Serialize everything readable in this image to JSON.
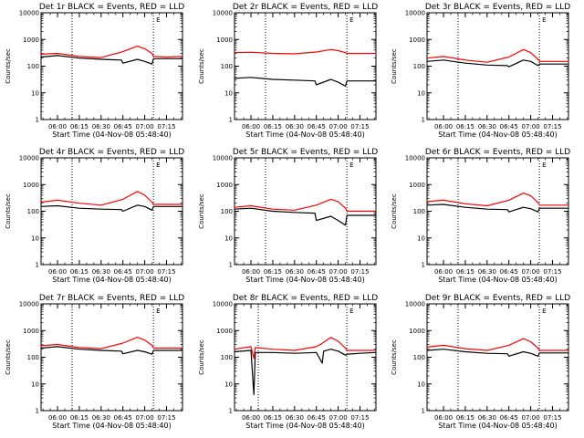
{
  "chart_data": {
    "type": "line",
    "layout": "3x3 panel grid",
    "y_scale": "log",
    "ylim": [
      1,
      10000
    ],
    "y_ticks": [
      "1",
      "10",
      "100",
      "1000",
      "10000"
    ],
    "ylabel": "Counts/sec",
    "xlabel": "Start Time (04-Nov-08 05:48:40)",
    "x_ticks": [
      "06:00",
      "06:15",
      "06:30",
      "06:45",
      "07:00",
      "07:15"
    ],
    "x_range": [
      "05:48:40",
      "07:26"
    ],
    "series_colors": {
      "events": "#000000",
      "lld": "#ff0000"
    },
    "panels": [
      {
        "title": "Det 1r BLACK = Events, RED = LLD",
        "vlines": [
          "06:10",
          "07:06"
        ],
        "marker": "E",
        "events_points": [
          [
            "05:48:40",
            220
          ],
          [
            "06:00",
            250
          ],
          [
            "06:15",
            200
          ],
          [
            "06:30",
            180
          ],
          [
            "06:44",
            170
          ],
          [
            "06:45",
            130
          ],
          [
            "06:55",
            180
          ],
          [
            "07:00",
            150
          ],
          [
            "07:05",
            120
          ],
          [
            "07:06",
            190
          ],
          [
            "07:15",
            190
          ],
          [
            "07:26",
            190
          ]
        ],
        "lld_points": [
          [
            "05:48:40",
            280
          ],
          [
            "06:00",
            300
          ],
          [
            "06:15",
            230
          ],
          [
            "06:30",
            210
          ],
          [
            "06:45",
            350
          ],
          [
            "06:55",
            560
          ],
          [
            "07:00",
            450
          ],
          [
            "07:05",
            300
          ],
          [
            "07:06",
            230
          ],
          [
            "07:15",
            220
          ],
          [
            "07:26",
            230
          ]
        ]
      },
      {
        "title": "Det 2r BLACK = Events, RED = LLD",
        "vlines": [
          "06:10",
          "07:06"
        ],
        "marker": "E",
        "events_points": [
          [
            "05:48:40",
            35
          ],
          [
            "06:00",
            38
          ],
          [
            "06:15",
            32
          ],
          [
            "06:30",
            30
          ],
          [
            "06:44",
            28
          ],
          [
            "06:45",
            20
          ],
          [
            "06:55",
            32
          ],
          [
            "07:00",
            25
          ],
          [
            "07:05",
            18
          ],
          [
            "07:06",
            28
          ],
          [
            "07:15",
            28
          ],
          [
            "07:26",
            28
          ]
        ],
        "lld_points": [
          [
            "05:48:40",
            320
          ],
          [
            "06:00",
            330
          ],
          [
            "06:15",
            300
          ],
          [
            "06:30",
            290
          ],
          [
            "06:45",
            340
          ],
          [
            "06:55",
            420
          ],
          [
            "07:00",
            380
          ],
          [
            "07:05",
            320
          ],
          [
            "07:06",
            300
          ],
          [
            "07:15",
            300
          ],
          [
            "07:26",
            300
          ]
        ]
      },
      {
        "title": "Det 3r BLACK = Events, RED = LLD",
        "vlines": [
          "06:10",
          "07:06"
        ],
        "marker": "E",
        "events_points": [
          [
            "05:48:40",
            150
          ],
          [
            "06:00",
            170
          ],
          [
            "06:15",
            130
          ],
          [
            "06:30",
            110
          ],
          [
            "06:44",
            105
          ],
          [
            "06:45",
            95
          ],
          [
            "06:55",
            170
          ],
          [
            "07:00",
            150
          ],
          [
            "07:05",
            105
          ],
          [
            "07:06",
            120
          ],
          [
            "07:15",
            120
          ],
          [
            "07:26",
            120
          ]
        ],
        "lld_points": [
          [
            "05:48:40",
            200
          ],
          [
            "06:00",
            230
          ],
          [
            "06:15",
            170
          ],
          [
            "06:30",
            140
          ],
          [
            "06:45",
            220
          ],
          [
            "06:55",
            420
          ],
          [
            "07:00",
            320
          ],
          [
            "07:05",
            180
          ],
          [
            "07:06",
            150
          ],
          [
            "07:15",
            150
          ],
          [
            "07:26",
            150
          ]
        ]
      },
      {
        "title": "Det 4r BLACK = Events, RED = LLD",
        "vlines": [
          "06:10",
          "07:06"
        ],
        "marker": "E",
        "events_points": [
          [
            "05:48:40",
            150
          ],
          [
            "06:00",
            160
          ],
          [
            "06:15",
            130
          ],
          [
            "06:30",
            120
          ],
          [
            "06:44",
            115
          ],
          [
            "06:45",
            100
          ],
          [
            "06:55",
            170
          ],
          [
            "07:00",
            150
          ],
          [
            "07:05",
            110
          ],
          [
            "07:06",
            150
          ],
          [
            "07:15",
            150
          ],
          [
            "07:26",
            150
          ]
        ],
        "lld_points": [
          [
            "05:48:40",
            220
          ],
          [
            "06:00",
            260
          ],
          [
            "06:15",
            200
          ],
          [
            "06:30",
            170
          ],
          [
            "06:45",
            280
          ],
          [
            "06:55",
            550
          ],
          [
            "07:00",
            400
          ],
          [
            "07:05",
            220
          ],
          [
            "07:06",
            180
          ],
          [
            "07:15",
            180
          ],
          [
            "07:26",
            180
          ]
        ]
      },
      {
        "title": "Det 5r BLACK = Events, RED = LLD",
        "vlines": [
          "06:10",
          "07:06"
        ],
        "marker": "E",
        "events_points": [
          [
            "05:48:40",
            120
          ],
          [
            "06:00",
            130
          ],
          [
            "06:15",
            100
          ],
          [
            "06:30",
            90
          ],
          [
            "06:44",
            85
          ],
          [
            "06:45",
            45
          ],
          [
            "06:55",
            65
          ],
          [
            "07:00",
            45
          ],
          [
            "07:05",
            30
          ],
          [
            "07:06",
            70
          ],
          [
            "07:15",
            70
          ],
          [
            "07:26",
            70
          ]
        ],
        "lld_points": [
          [
            "05:48:40",
            140
          ],
          [
            "06:00",
            160
          ],
          [
            "06:15",
            120
          ],
          [
            "06:30",
            110
          ],
          [
            "06:45",
            170
          ],
          [
            "06:55",
            280
          ],
          [
            "07:00",
            230
          ],
          [
            "07:05",
            130
          ],
          [
            "07:06",
            100
          ],
          [
            "07:15",
            100
          ],
          [
            "07:26",
            100
          ]
        ]
      },
      {
        "title": "Det 6r BLACK = Events, RED = LLD",
        "vlines": [
          "06:10",
          "07:06"
        ],
        "marker": "E",
        "events_points": [
          [
            "05:48:40",
            170
          ],
          [
            "06:00",
            180
          ],
          [
            "06:15",
            140
          ],
          [
            "06:30",
            120
          ],
          [
            "06:44",
            115
          ],
          [
            "06:45",
            95
          ],
          [
            "06:55",
            140
          ],
          [
            "07:00",
            125
          ],
          [
            "07:05",
            95
          ],
          [
            "07:06",
            130
          ],
          [
            "07:15",
            130
          ],
          [
            "07:26",
            130
          ]
        ],
        "lld_points": [
          [
            "05:48:40",
            230
          ],
          [
            "06:00",
            260
          ],
          [
            "06:15",
            190
          ],
          [
            "06:30",
            160
          ],
          [
            "06:45",
            260
          ],
          [
            "06:55",
            480
          ],
          [
            "07:00",
            380
          ],
          [
            "07:05",
            210
          ],
          [
            "07:06",
            170
          ],
          [
            "07:15",
            170
          ],
          [
            "07:26",
            170
          ]
        ]
      },
      {
        "title": "Det 7r BLACK = Events, RED = LLD",
        "vlines": [
          "06:10",
          "07:06"
        ],
        "marker": "E",
        "events_points": [
          [
            "05:48:40",
            220
          ],
          [
            "06:00",
            250
          ],
          [
            "06:15",
            200
          ],
          [
            "06:30",
            180
          ],
          [
            "06:44",
            170
          ],
          [
            "06:45",
            135
          ],
          [
            "06:55",
            180
          ],
          [
            "07:00",
            160
          ],
          [
            "07:05",
            130
          ],
          [
            "07:06",
            180
          ],
          [
            "07:15",
            180
          ],
          [
            "07:26",
            180
          ]
        ],
        "lld_points": [
          [
            "05:48:40",
            270
          ],
          [
            "06:00",
            300
          ],
          [
            "06:15",
            230
          ],
          [
            "06:30",
            210
          ],
          [
            "06:45",
            340
          ],
          [
            "06:55",
            560
          ],
          [
            "07:00",
            440
          ],
          [
            "07:05",
            280
          ],
          [
            "07:06",
            220
          ],
          [
            "07:15",
            220
          ],
          [
            "07:26",
            220
          ]
        ]
      },
      {
        "title": "Det 8r BLACK = Events, RED = LLD",
        "vlines": [
          "06:05",
          "07:06"
        ],
        "marker": "E",
        "events_points": [
          [
            "05:48:40",
            160
          ],
          [
            "06:00",
            180
          ],
          [
            "06:02",
            4
          ],
          [
            "06:03",
            150
          ],
          [
            "06:15",
            150
          ],
          [
            "06:30",
            140
          ],
          [
            "06:45",
            150
          ],
          [
            "06:49",
            60
          ],
          [
            "06:50",
            170
          ],
          [
            "06:55",
            200
          ],
          [
            "07:00",
            170
          ],
          [
            "07:05",
            120
          ],
          [
            "07:06",
            130
          ],
          [
            "07:15",
            140
          ],
          [
            "07:26",
            150
          ]
        ],
        "lld_points": [
          [
            "05:48:40",
            200
          ],
          [
            "06:00",
            250
          ],
          [
            "06:02",
            90
          ],
          [
            "06:03",
            230
          ],
          [
            "06:15",
            200
          ],
          [
            "06:30",
            180
          ],
          [
            "06:45",
            250
          ],
          [
            "06:49",
            330
          ],
          [
            "06:55",
            550
          ],
          [
            "07:00",
            400
          ],
          [
            "07:05",
            220
          ],
          [
            "07:06",
            180
          ],
          [
            "07:15",
            180
          ],
          [
            "07:26",
            180
          ]
        ]
      },
      {
        "title": "Det 9r BLACK = Events, RED = LLD",
        "vlines": [
          "06:10",
          "07:06"
        ],
        "marker": "E",
        "events_points": [
          [
            "05:48:40",
            180
          ],
          [
            "06:00",
            200
          ],
          [
            "06:15",
            160
          ],
          [
            "06:30",
            140
          ],
          [
            "06:44",
            135
          ],
          [
            "06:45",
            110
          ],
          [
            "06:55",
            160
          ],
          [
            "07:00",
            140
          ],
          [
            "07:05",
            110
          ],
          [
            "07:06",
            145
          ],
          [
            "07:15",
            145
          ],
          [
            "07:26",
            145
          ]
        ],
        "lld_points": [
          [
            "05:48:40",
            240
          ],
          [
            "06:00",
            280
          ],
          [
            "06:15",
            210
          ],
          [
            "06:30",
            180
          ],
          [
            "06:45",
            280
          ],
          [
            "06:55",
            500
          ],
          [
            "07:00",
            380
          ],
          [
            "07:05",
            220
          ],
          [
            "07:06",
            180
          ],
          [
            "07:15",
            180
          ],
          [
            "07:26",
            180
          ]
        ]
      }
    ]
  }
}
